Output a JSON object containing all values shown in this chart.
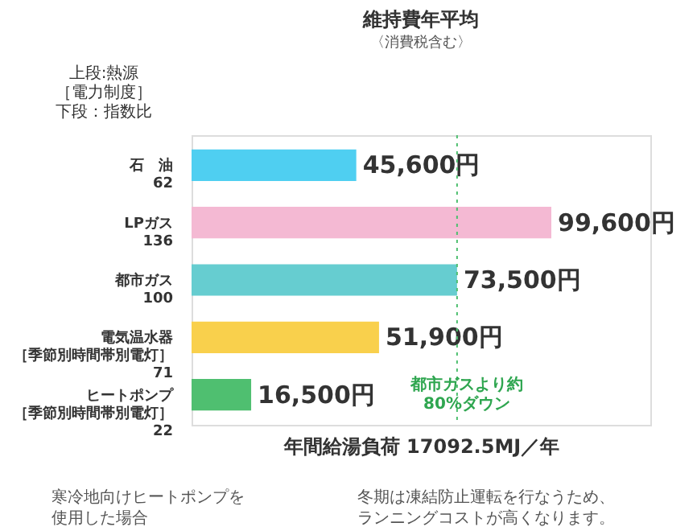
{
  "chart_data": {
    "type": "bar",
    "orientation": "horizontal",
    "title": "維持費年平均",
    "subtitle": "〈消費税含む〉",
    "ylabel": "上段:熱源［電力制度］下段：指数比",
    "xlabel": "年間給湯負荷 17092.5MJ／年",
    "categories": [
      "石　油62",
      "LPガス136",
      "都市ガス100",
      "電気温水器［季節別時間帯別電灯］71",
      "ヒートポンプ［季節別時間帯別電灯］22"
    ],
    "values": [
      45600,
      99600,
      73500,
      51900,
      16500
    ],
    "colors": [
      "#4fcff1",
      "#f4b9d3",
      "#66cdd0",
      "#f9d04c",
      "#4fbf70"
    ],
    "value_labels": [
      "45,600円",
      "99,600円",
      "73,500円",
      "51,900円",
      "16,500円"
    ],
    "xlim": [
      0,
      127000
    ],
    "ref_lines": [
      {
        "axis": "x",
        "value": 73500,
        "color": "#4fbf70",
        "line_style": "dotted"
      }
    ],
    "annotations": [
      "都市ガスより約80%ダウン",
      "寒冷地向けヒートポンプを使用した場合",
      "冬期は凍結防止運転を行なうため、ランニングコストが高くなります。"
    ]
  }
}
